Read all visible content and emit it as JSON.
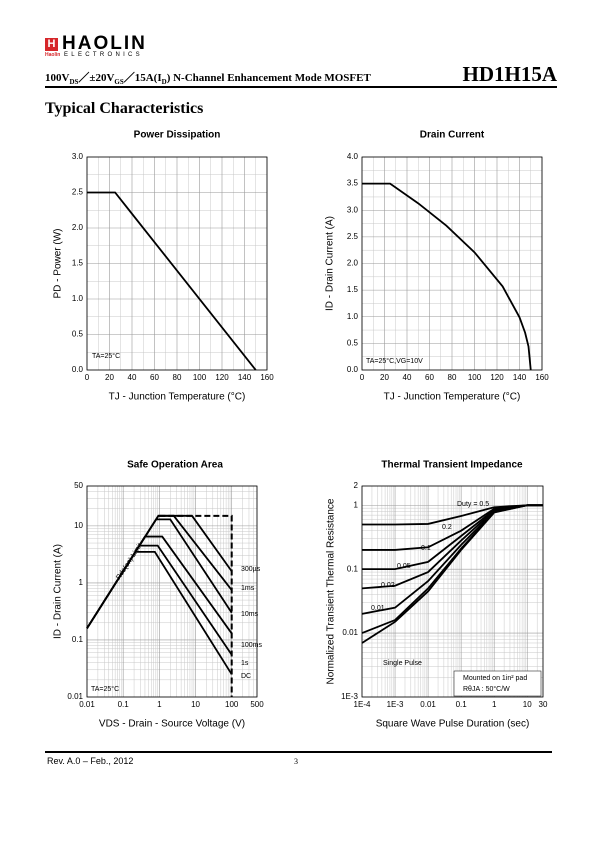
{
  "header": {
    "logo_mark": "H",
    "logo_small": "Haolin",
    "brand": "HAOLIN",
    "brand_sub": "ELECTRONICS",
    "subtitle": [
      "100V",
      "DS",
      "／±20V",
      "GS",
      "／15A(I",
      "D",
      ")  N-Channel  Enhancement  Mode  MOSFET"
    ],
    "part": "HD1H15A",
    "section": "Typical Characteristics"
  },
  "footer": {
    "revision": "Rev. A.0 – Feb., 2012",
    "page": "3"
  },
  "chart_data": [
    {
      "type": "line",
      "title": "Power Dissipation",
      "xlabel": "TJ - Junction Temperature (°C)",
      "ylabel": "PD - Power (W)",
      "xlim": [
        0,
        160
      ],
      "xticks": [
        0,
        20,
        40,
        60,
        80,
        100,
        120,
        140,
        160
      ],
      "ylim": [
        0,
        3
      ],
      "yticks": [
        {
          "value": 0,
          "label": "0.0"
        },
        {
          "value": 0.5,
          "label": "0.5"
        },
        {
          "value": 1,
          "label": "1.0"
        },
        {
          "value": 1.5,
          "label": "1.5"
        },
        {
          "value": 2,
          "label": "2.0"
        },
        {
          "value": 2.5,
          "label": "2.5"
        },
        {
          "value": 3,
          "label": "3.0"
        }
      ],
      "grid": true,
      "minor_grid": true,
      "color": "#000000",
      "series": [
        {
          "x": [
            0,
            25,
            150
          ],
          "values": [
            2.5,
            2.5,
            0
          ]
        }
      ],
      "annotations": [
        "TA=25°C"
      ]
    },
    {
      "type": "line",
      "title": "Drain Current",
      "xlabel": "TJ - Junction Temperature (°C)",
      "ylabel": "ID - Drain Current (A)",
      "xlim": [
        0,
        160
      ],
      "xticks": [
        0,
        20,
        40,
        60,
        80,
        100,
        120,
        140,
        160
      ],
      "ylim": [
        0,
        4
      ],
      "yticks": [
        {
          "value": 0,
          "label": "0.0"
        },
        {
          "value": 0.5,
          "label": "0.5"
        },
        {
          "value": 1,
          "label": "1.0"
        },
        {
          "value": 1.5,
          "label": "1.5"
        },
        {
          "value": 2,
          "label": "2.0"
        },
        {
          "value": 2.5,
          "label": "2.5"
        },
        {
          "value": 3,
          "label": "3.0"
        },
        {
          "value": 3.5,
          "label": "3.5"
        },
        {
          "value": 4,
          "label": "4.0"
        }
      ],
      "grid": true,
      "minor_grid": true,
      "color": "#000000",
      "series": [
        {
          "x": [
            0,
            25,
            50,
            75,
            100,
            125,
            140,
            145,
            148,
            150
          ],
          "values": [
            3.5,
            3.5,
            3.13,
            2.71,
            2.21,
            1.57,
            0.99,
            0.7,
            0.44,
            0
          ]
        }
      ],
      "annotations": [
        "TA=25°C,VG=10V"
      ]
    },
    {
      "type": "line",
      "title": "Safe Operation Area",
      "xlabel": "VDS - Drain - Source Voltage (V)",
      "ylabel": "ID - Drain Current (A)",
      "xscale": "log",
      "yscale": "log",
      "xlim": [
        0.01,
        500
      ],
      "xticks": [
        0.01,
        0.1,
        1,
        10,
        100,
        500
      ],
      "ylim": [
        0.01,
        50
      ],
      "yticks": [
        0.01,
        0.1,
        1,
        10,
        50
      ],
      "grid": true,
      "minor_grid": true,
      "color": "#000000",
      "series": [
        {
          "name": "300µs",
          "x": [
            0.01,
            0.94,
            8,
            100
          ],
          "values": [
            0.16,
            15,
            15,
            1.6
          ]
        },
        {
          "name": "1ms",
          "x": [
            0.01,
            0.94,
            2.5,
            100
          ],
          "values": [
            0.16,
            15,
            15,
            0.75
          ]
        },
        {
          "name": "10ms",
          "x": [
            0.01,
            0.81,
            2,
            100
          ],
          "values": [
            0.16,
            13,
            13,
            0.3
          ]
        },
        {
          "name": "100ms",
          "x": [
            0.01,
            0.4,
            1.2,
            100
          ],
          "values": [
            0.16,
            6.5,
            6.5,
            0.13
          ]
        },
        {
          "name": "1s",
          "x": [
            0.01,
            0.28,
            0.9,
            100
          ],
          "values": [
            0.16,
            4.5,
            4.5,
            0.055
          ]
        },
        {
          "name": "DC",
          "x": [
            0.01,
            0.22,
            0.75,
            100
          ],
          "values": [
            0.16,
            3.5,
            3.5,
            0.025
          ]
        },
        {
          "x": [
            1,
            100,
            100
          ],
          "values": [
            15,
            15,
            0.01
          ],
          "dashed": true
        }
      ],
      "annotations": [
        "TA=25°C",
        "Rds(on) Limit"
      ]
    },
    {
      "type": "line",
      "title": "Thermal Transient Impedance",
      "xlabel": "Square Wave Pulse Duration (sec)",
      "ylabel": "Normalized Transient Thermal Resistance",
      "xscale": "log",
      "yscale": "log",
      "xlim": [
        0.0001,
        30
      ],
      "xticks": [
        {
          "value": 0.0001,
          "label": "1E-4"
        },
        {
          "value": 0.001,
          "label": "1E-3"
        },
        0.01,
        0.1,
        1,
        10,
        30
      ],
      "ylim": [
        0.001,
        2
      ],
      "yticks": [
        {
          "value": 0.001,
          "label": "1E-3"
        },
        0.01,
        0.1,
        1,
        2
      ],
      "grid": true,
      "minor_grid": true,
      "color": "#000000",
      "series": [
        {
          "name": "Duty = 0.5",
          "x": [
            0.0001,
            0.001,
            0.01,
            0.1,
            1,
            10,
            30
          ],
          "values": [
            0.5,
            0.5,
            0.51,
            0.68,
            0.93,
            1,
            1
          ]
        },
        {
          "name": "0.2",
          "x": [
            0.0001,
            0.001,
            0.01,
            0.1,
            1,
            10,
            30
          ],
          "values": [
            0.2,
            0.2,
            0.22,
            0.4,
            0.88,
            1,
            1
          ]
        },
        {
          "name": "0.1",
          "x": [
            0.0001,
            0.001,
            0.01,
            0.1,
            1,
            10,
            30
          ],
          "values": [
            0.1,
            0.1,
            0.13,
            0.33,
            0.85,
            1,
            1
          ]
        },
        {
          "name": "0.05",
          "x": [
            0.0001,
            0.001,
            0.01,
            0.1,
            1,
            10,
            30
          ],
          "values": [
            0.05,
            0.055,
            0.09,
            0.28,
            0.83,
            1,
            1
          ]
        },
        {
          "name": "0.02",
          "x": [
            0.0001,
            0.001,
            0.01,
            0.1,
            1,
            10,
            30
          ],
          "values": [
            0.02,
            0.025,
            0.065,
            0.24,
            0.8,
            1,
            1
          ]
        },
        {
          "name": "0.01",
          "x": [
            0.0001,
            0.001,
            0.01,
            0.1,
            1,
            10,
            30
          ],
          "values": [
            0.01,
            0.016,
            0.05,
            0.21,
            0.78,
            1,
            1
          ]
        },
        {
          "name": "Single Pulse",
          "x": [
            0.0001,
            0.001,
            0.01,
            0.1,
            1,
            10,
            30
          ],
          "values": [
            0.007,
            0.015,
            0.045,
            0.2,
            0.77,
            1,
            1
          ]
        }
      ],
      "annotations": [
        "Mounted on 1in² pad",
        "RθJA : 50°C/W"
      ]
    }
  ]
}
